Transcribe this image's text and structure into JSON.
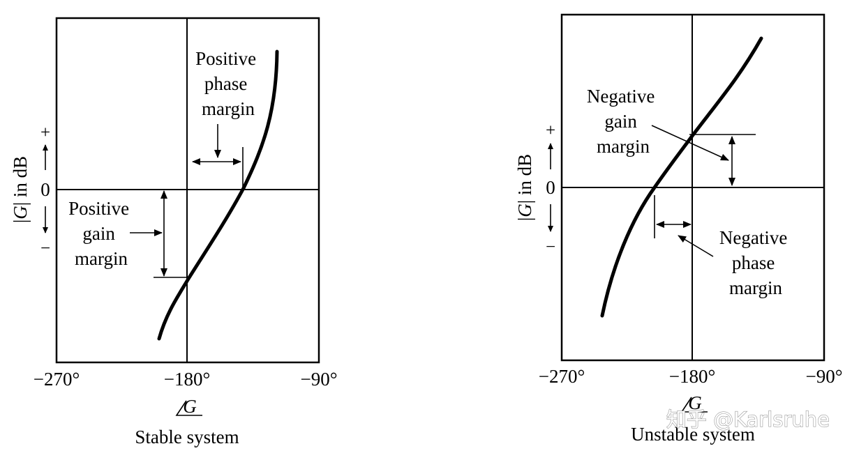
{
  "panels": [
    {
      "caption": "Stable system",
      "x_ticks": [
        "−270°",
        "−180°",
        "−90°"
      ],
      "x_label": "G",
      "y_label_pre": "|",
      "y_label_var": "G",
      "y_label_post": "| in dB",
      "y_plus": "+",
      "y_zero": "0",
      "y_minus": "−",
      "phase_margin_lines": [
        "Positive",
        "phase",
        "margin"
      ],
      "gain_margin_lines": [
        "Positive",
        "gain",
        "margin"
      ]
    },
    {
      "caption": "Unstable system",
      "x_ticks": [
        "−270°",
        "−180°",
        "−90°"
      ],
      "x_label": "G",
      "y_label_pre": "|",
      "y_label_var": "G",
      "y_label_post": "| in dB",
      "y_plus": "+",
      "y_zero": "0",
      "y_minus": "−",
      "gain_margin_lines": [
        "Negative",
        "gain",
        "margin"
      ],
      "phase_margin_lines": [
        "Negative",
        "phase",
        "margin"
      ]
    }
  ],
  "watermark": "知乎 @Karlsruhe"
}
